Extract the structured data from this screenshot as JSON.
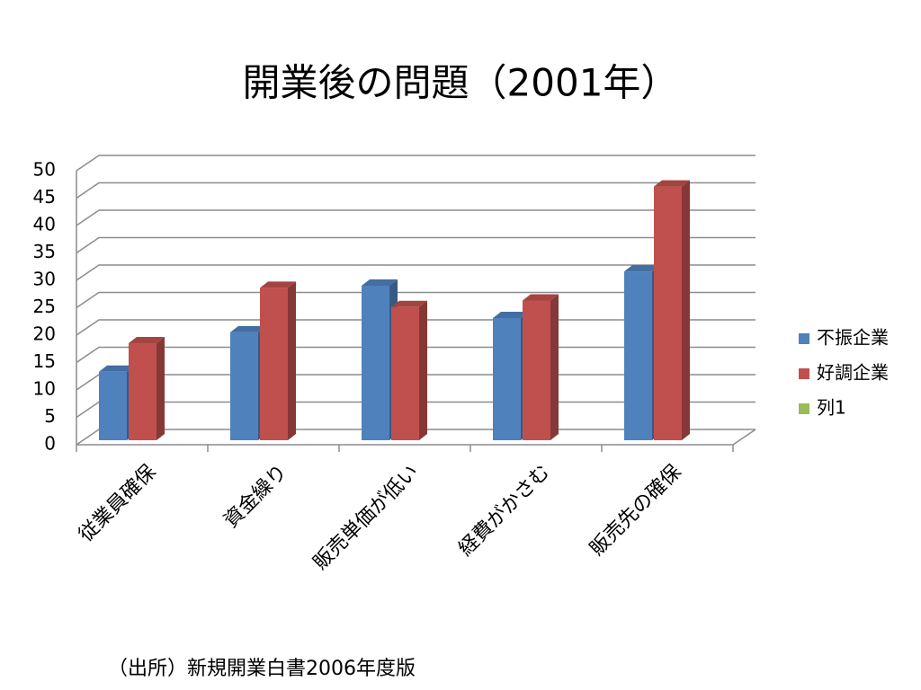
{
  "chart_data": {
    "type": "bar",
    "title": "開業後の問題（2001年）",
    "categories": [
      "従業員確保",
      "資金繰り",
      "販売単価が低い",
      "経費がかさむ",
      "販売先の確保"
    ],
    "series": [
      {
        "name": "不振企業",
        "color": "#4f81bd",
        "values": [
          12.5,
          19.7,
          28.2,
          22.3,
          30.8
        ]
      },
      {
        "name": "好調企業",
        "color": "#c0504d",
        "values": [
          17.7,
          27.8,
          24.3,
          25.5,
          46.3
        ]
      },
      {
        "name": "列1",
        "color": "#9bbb59",
        "values": [
          null,
          null,
          null,
          null,
          null
        ]
      }
    ],
    "ylim": [
      0,
      50
    ],
    "yticks": [
      0,
      5,
      10,
      15,
      20,
      25,
      30,
      35,
      40,
      45,
      50
    ],
    "grid": true,
    "legend": "right",
    "source": "（出所）新規開業白書2006年度版"
  }
}
